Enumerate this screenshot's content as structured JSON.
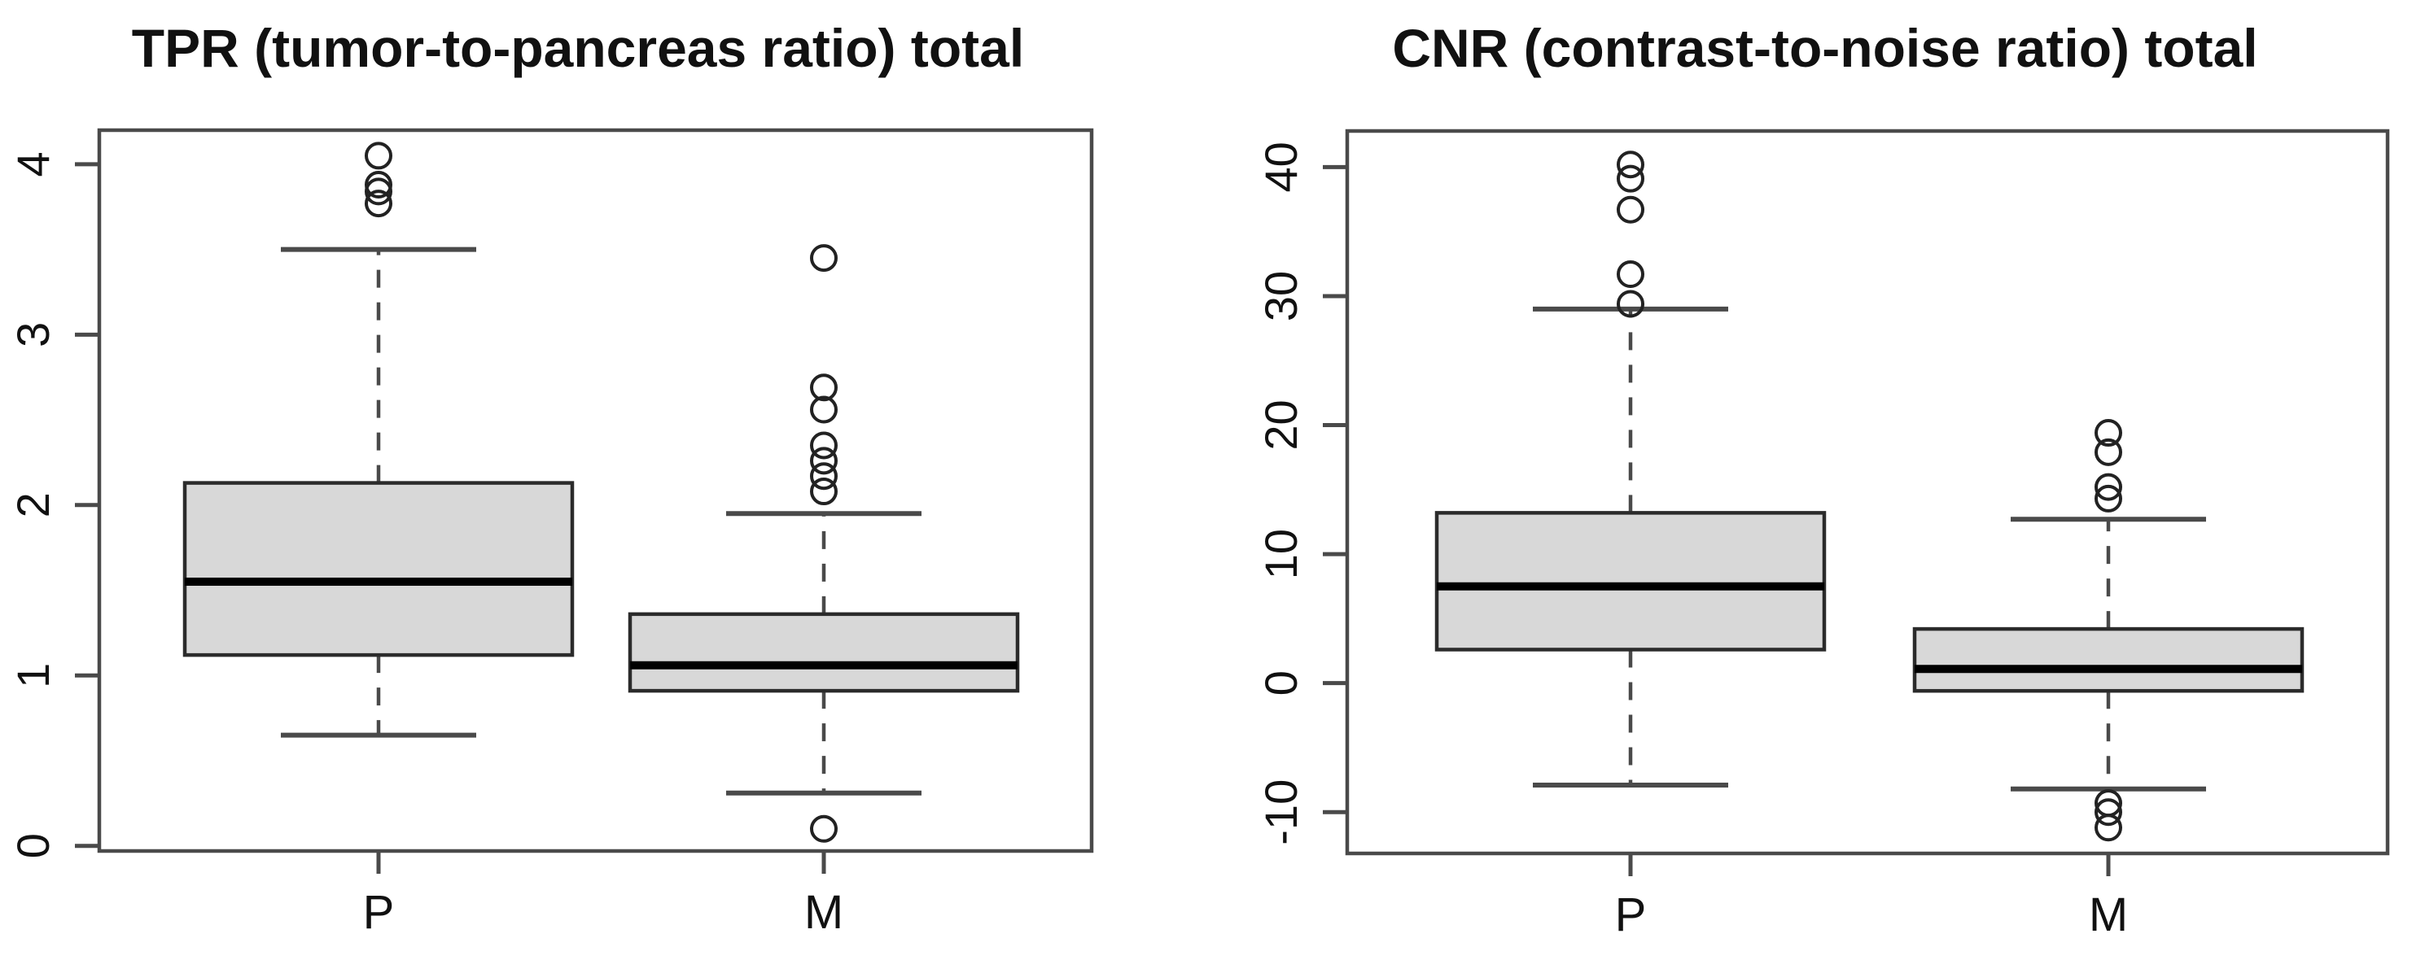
{
  "figure": {
    "background": "#ffffff",
    "line_color": "#4a4a4a",
    "box_border_color": "#2b2b2b",
    "box_fill_color": "#d8d8d8",
    "median_color": "#000000",
    "outlier_color": "#222222"
  },
  "chart_data": [
    {
      "type": "boxplot",
      "title": "TPR (tumor-to-pancreas ratio) total",
      "categories": [
        "P",
        "M"
      ],
      "xlabel": "",
      "ylabel": "",
      "ylim": [
        -0.03,
        4.2
      ],
      "yticks": [
        0,
        1,
        2,
        3,
        4
      ],
      "grid": false,
      "legend": null,
      "series": [
        {
          "category": "P",
          "whisker_low": 0.65,
          "q1": 1.12,
          "median": 1.55,
          "q3": 2.13,
          "whisker_high": 3.5,
          "outliers": [
            3.77,
            3.84,
            3.88,
            4.05
          ]
        },
        {
          "category": "M",
          "whisker_low": 0.31,
          "q1": 0.91,
          "median": 1.06,
          "q3": 1.36,
          "whisker_high": 1.95,
          "outliers": [
            0.1,
            2.08,
            2.17,
            2.26,
            2.35,
            2.56,
            2.69,
            3.45
          ]
        }
      ]
    },
    {
      "type": "boxplot",
      "title": "CNR (contrast-to-noise ratio) total",
      "categories": [
        "P",
        "M"
      ],
      "xlabel": "",
      "ylabel": "",
      "ylim": [
        -13.2,
        42.8
      ],
      "yticks": [
        -10,
        0,
        10,
        20,
        30,
        40
      ],
      "grid": false,
      "legend": null,
      "series": [
        {
          "category": "P",
          "whisker_low": -7.9,
          "q1": 2.6,
          "median": 7.5,
          "q3": 13.2,
          "whisker_high": 29.0,
          "outliers": [
            29.4,
            31.7,
            36.7,
            39.1,
            40.2
          ]
        },
        {
          "category": "M",
          "whisker_low": -8.2,
          "q1": -0.6,
          "median": 1.1,
          "q3": 4.2,
          "whisker_high": 12.7,
          "outliers": [
            14.3,
            15.2,
            17.9,
            19.4,
            -9.3,
            -10.0,
            -11.2
          ]
        }
      ]
    }
  ]
}
